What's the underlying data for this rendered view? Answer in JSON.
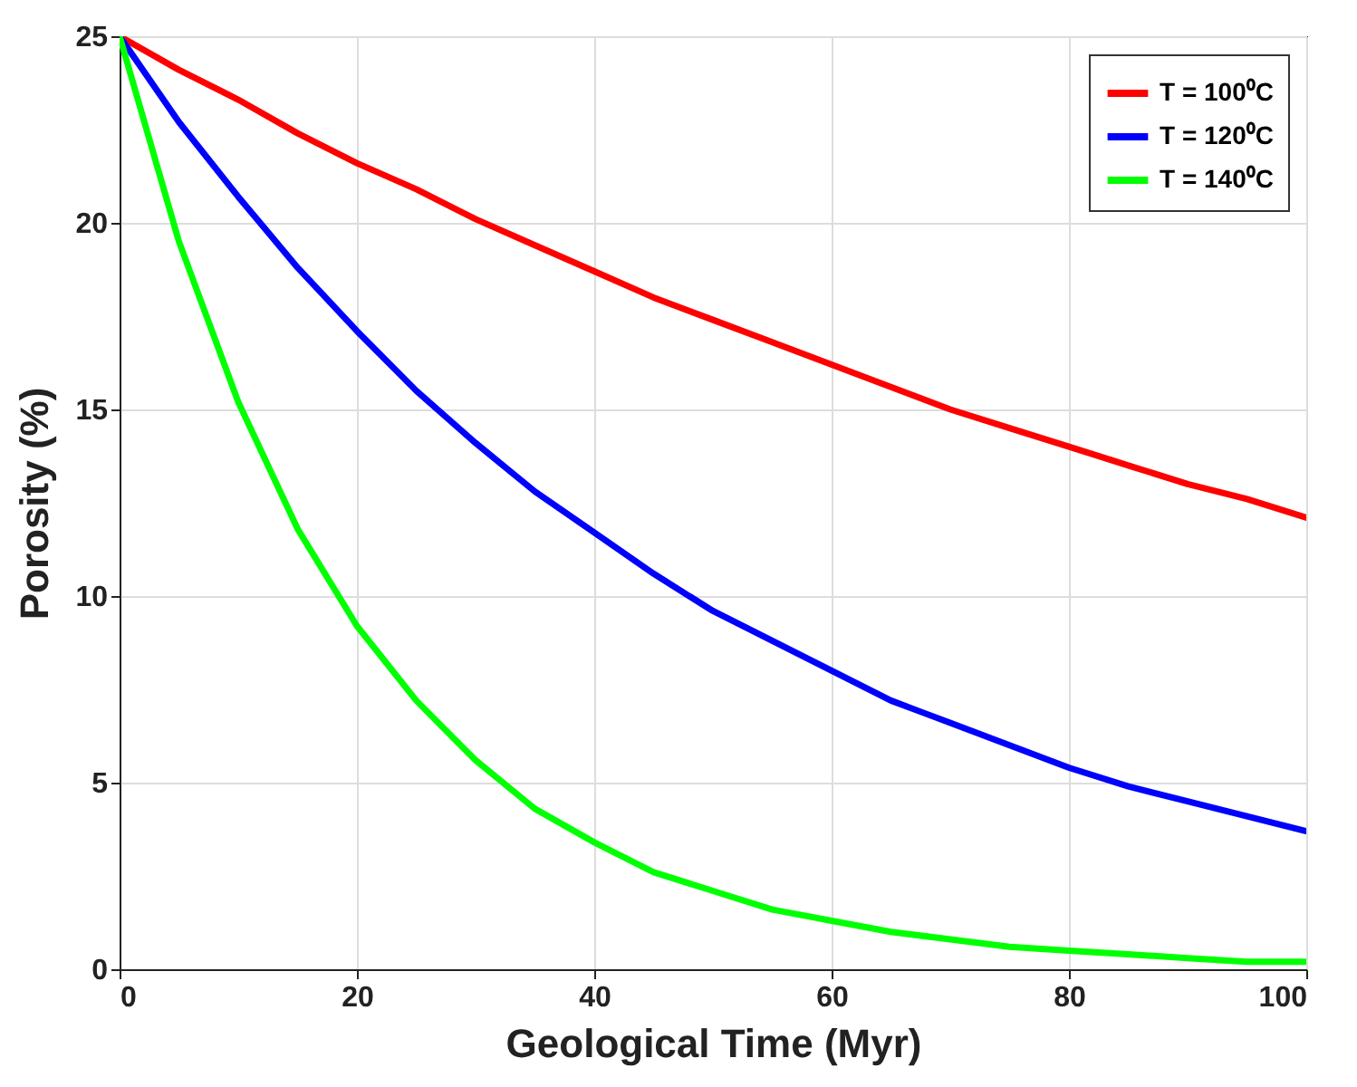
{
  "chart_data": {
    "type": "line",
    "xlabel": "Geological Time (Myr)",
    "ylabel": "Porosity (%)",
    "x": [
      0,
      5,
      10,
      15,
      20,
      25,
      30,
      35,
      40,
      45,
      50,
      55,
      60,
      65,
      70,
      75,
      80,
      85,
      90,
      95,
      100
    ],
    "series": [
      {
        "name": "T = 100⁰C",
        "color": "#ff0000",
        "values": [
          25,
          24.1,
          23.3,
          22.4,
          21.6,
          20.9,
          20.1,
          19.4,
          18.7,
          18.0,
          17.4,
          16.8,
          16.2,
          15.6,
          15.0,
          14.5,
          14.0,
          13.5,
          13.0,
          12.6,
          12.1
        ]
      },
      {
        "name": "T = 120⁰C",
        "color": "#0000ff",
        "values": [
          25,
          22.7,
          20.7,
          18.8,
          17.1,
          15.5,
          14.1,
          12.8,
          11.7,
          10.6,
          9.6,
          8.8,
          8.0,
          7.2,
          6.6,
          6.0,
          5.4,
          4.9,
          4.5,
          4.1,
          3.7
        ]
      },
      {
        "name": "T = 140⁰C",
        "color": "#00ff00",
        "values": [
          25,
          19.5,
          15.2,
          11.8,
          9.2,
          7.2,
          5.6,
          4.3,
          3.4,
          2.6,
          2.1,
          1.6,
          1.3,
          1.0,
          0.8,
          0.6,
          0.5,
          0.4,
          0.3,
          0.2,
          0.2
        ]
      }
    ],
    "xlim": [
      0,
      100
    ],
    "xticks": [
      0,
      20,
      40,
      60,
      80,
      100
    ],
    "ylim": [
      0,
      25
    ],
    "yticks": [
      0,
      5,
      10,
      15,
      20,
      25
    ],
    "grid": true,
    "legend": "top right",
    "marker": "none",
    "line_style": "solid"
  }
}
